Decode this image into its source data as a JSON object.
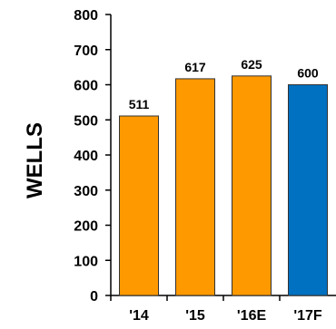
{
  "chart_data": {
    "type": "bar",
    "title": "",
    "xlabel": "",
    "ylabel": "WELLS",
    "categories": [
      "'14",
      "'15",
      "'16E",
      "'17F"
    ],
    "values": [
      511,
      617,
      625,
      600
    ],
    "data_labels": [
      "511",
      "617",
      "625",
      "600"
    ],
    "bar_colors": [
      "#ff9900",
      "#ff9900",
      "#ff9900",
      "#0070c0"
    ],
    "ylim": [
      0,
      800
    ],
    "yticks": [
      0,
      100,
      200,
      300,
      400,
      500,
      600,
      700,
      800
    ],
    "ytick_labels": [
      "0",
      "100",
      "200",
      "300",
      "400",
      "500",
      "600",
      "700",
      "800"
    ],
    "grid": false,
    "legend": "none"
  }
}
